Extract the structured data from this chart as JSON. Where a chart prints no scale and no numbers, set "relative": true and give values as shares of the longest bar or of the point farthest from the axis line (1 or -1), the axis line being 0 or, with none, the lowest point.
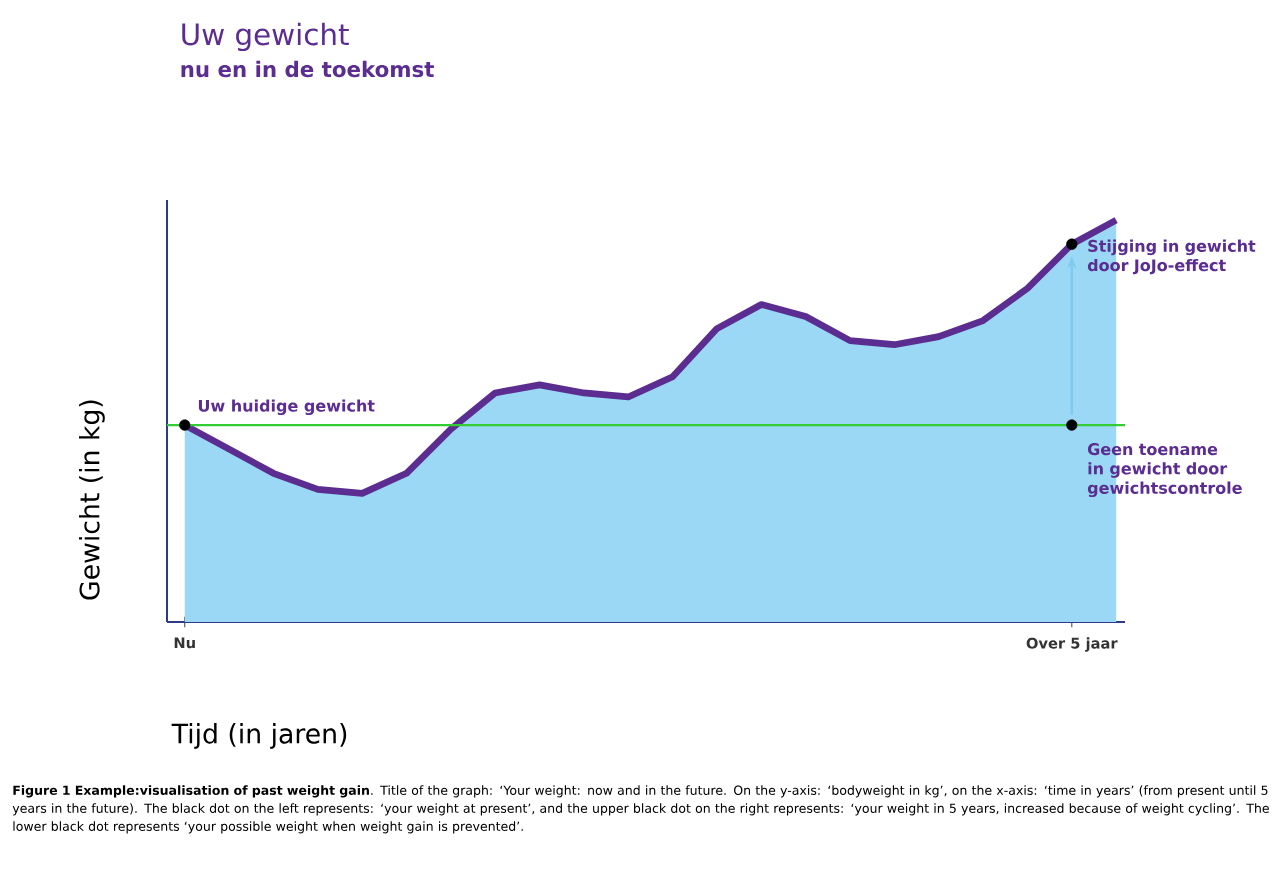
{
  "chart_data": {
    "type": "area",
    "relative": true,
    "title": "Uw gewicht",
    "subtitle": "nu en in de toekomst",
    "xlabel": "Tijd (in jaren)",
    "ylabel": "Gewicht (in kg)",
    "categories": [
      "Nu",
      null,
      null,
      null,
      null,
      null,
      null,
      null,
      null,
      null,
      null,
      null,
      null,
      null,
      null,
      null,
      null,
      null,
      null,
      null,
      "Over 5 jaar",
      null
    ],
    "series": [
      {
        "color": "#5b2d91",
        "values": [
          0.49,
          0.43,
          0.37,
          0.33,
          0.32,
          0.37,
          0.48,
          0.57,
          0.59,
          0.57,
          0.56,
          0.61,
          0.73,
          0.79,
          0.76,
          0.7,
          0.69,
          0.71,
          0.75,
          0.83,
          0.94,
          1.0
        ]
      },
      {
        "type": "scatter",
        "color": "#000000",
        "x": [
          "Nu",
          "Over 5 jaar",
          "Over 5 jaar"
        ],
        "values": [
          0.49,
          0.94,
          0.49
        ]
      }
    ],
    "ref_lines": [
      {
        "axis": "y",
        "value": 0.49,
        "color": "#33cc33"
      }
    ],
    "annotations": [
      {
        "text": "Uw huidige gewicht",
        "x": "Nu",
        "y": 0.49
      },
      {
        "text": "Stijging in gewicht door JoJo-effect",
        "x": "Over 5 jaar",
        "y": 0.94
      },
      {
        "text": "Geen toename in gewicht door gewichtscontrole",
        "x": "Over 5 jaar",
        "y": 0.49
      },
      "**Figure 1 Example:visualisation of past weight gain**. Title of the graph: ‘Your weight: now and in the future. On the y-axis: ‘bodyweight in kg’, on the x-axis: ‘time in years’ (from present until 5 years in the future). The black dot on the left represents: ‘your weight at present’, and the upper black dot on the right represents: ‘your weight in 5 years, increased because of weight cycling’. The lower black dot represents ‘your possible weight when weight gain is prevented’."
    ]
  }
}
